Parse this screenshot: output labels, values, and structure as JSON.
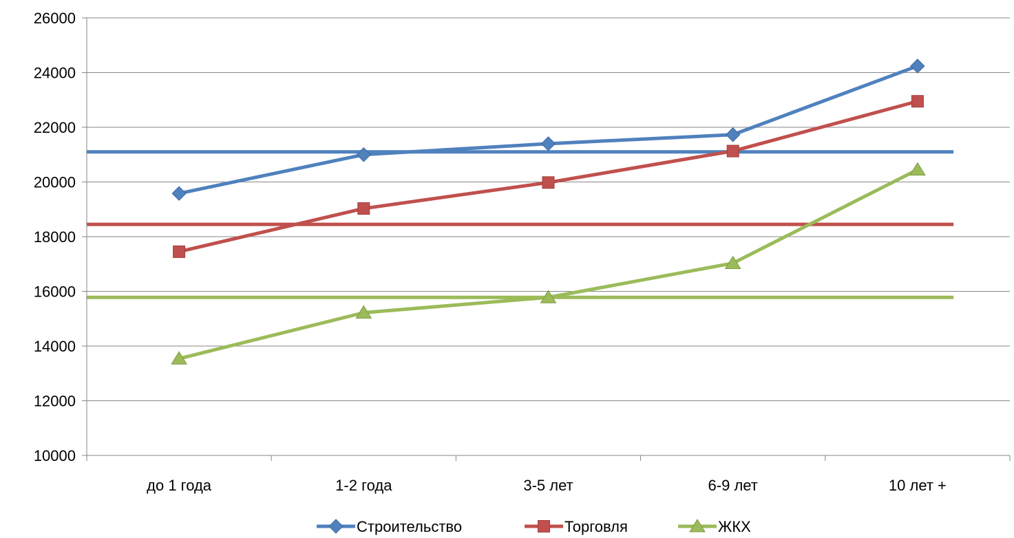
{
  "chart_data": {
    "type": "line",
    "title": "",
    "xlabel": "",
    "ylabel": "",
    "categories": [
      "до 1 года",
      "1-2 года",
      "3-5 лет",
      "6-9 лет",
      "10 лет +"
    ],
    "ylim": [
      10000,
      26000
    ],
    "yticks": [
      10000,
      12000,
      14000,
      16000,
      18000,
      20000,
      22000,
      24000,
      26000
    ],
    "grid": true,
    "legend_position": "bottom",
    "series": [
      {
        "name": "Строительство",
        "values": [
          19580,
          21000,
          21400,
          21730,
          24240
        ],
        "color": "#4F81BD",
        "marker": "diamond",
        "average": 21100
      },
      {
        "name": "Торговля",
        "values": [
          17450,
          19030,
          19980,
          21130,
          22950
        ],
        "color": "#C0504D",
        "marker": "square",
        "average": 18450
      },
      {
        "name": "ЖКХ",
        "values": [
          13540,
          15220,
          15780,
          17030,
          20450
        ],
        "color": "#9BBB59",
        "marker": "triangle",
        "average": 15780
      }
    ]
  }
}
